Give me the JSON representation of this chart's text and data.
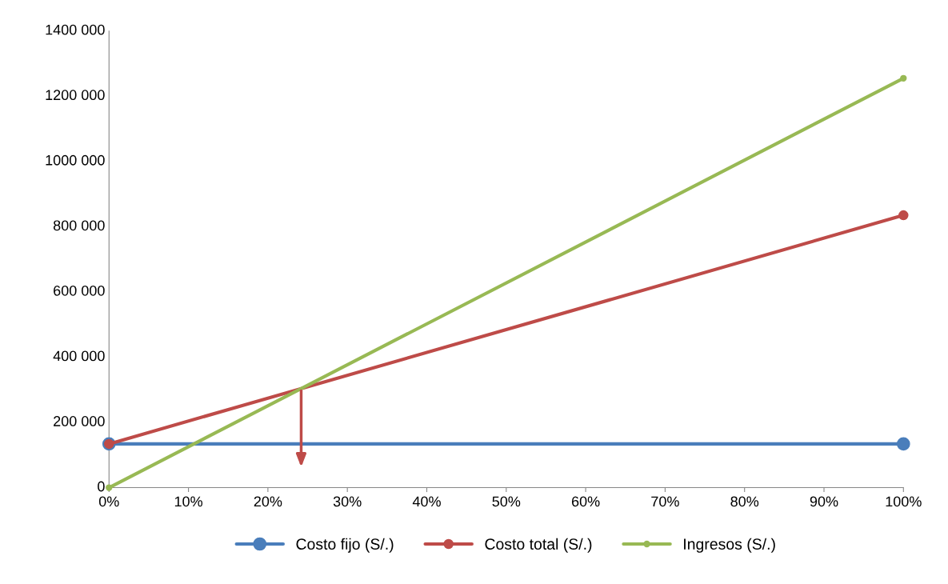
{
  "chart_data": {
    "type": "line",
    "x": [
      0,
      100
    ],
    "series": [
      {
        "name": "Costo fijo (S/.)",
        "color": "#4a7ebb",
        "values": [
          134000,
          134000
        ]
      },
      {
        "name": "Costo total (S/.)",
        "color": "#be4b48",
        "values": [
          134000,
          835000
        ]
      },
      {
        "name": "Ingresos (S/.)",
        "color": "#98b954",
        "values": [
          0,
          1255000
        ]
      }
    ],
    "xlim": [
      0,
      100
    ],
    "xticks": [
      {
        "value": 0,
        "label": "0%"
      },
      {
        "value": 10,
        "label": "10%"
      },
      {
        "value": 20,
        "label": "20%"
      },
      {
        "value": 30,
        "label": "30%"
      },
      {
        "value": 40,
        "label": "40%"
      },
      {
        "value": 50,
        "label": "50%"
      },
      {
        "value": 60,
        "label": "60%"
      },
      {
        "value": 70,
        "label": "70%"
      },
      {
        "value": 80,
        "label": "80%"
      },
      {
        "value": 90,
        "label": "90%"
      },
      {
        "value": 100,
        "label": "100%"
      }
    ],
    "ylim": [
      0,
      1400000
    ],
    "yticks": [
      {
        "value": 0,
        "label": "0"
      },
      {
        "value": 200000,
        "label": "200 000"
      },
      {
        "value": 400000,
        "label": "400 000"
      },
      {
        "value": 600000,
        "label": "600 000"
      },
      {
        "value": 800000,
        "label": "800 000"
      },
      {
        "value": 1000000,
        "label": "1000 000"
      },
      {
        "value": 1200000,
        "label": "1200 000"
      },
      {
        "value": 1400000,
        "label": "1400 000"
      }
    ],
    "grid": false,
    "legend": "bottom",
    "marker": "circle",
    "line_style": "solid"
  }
}
